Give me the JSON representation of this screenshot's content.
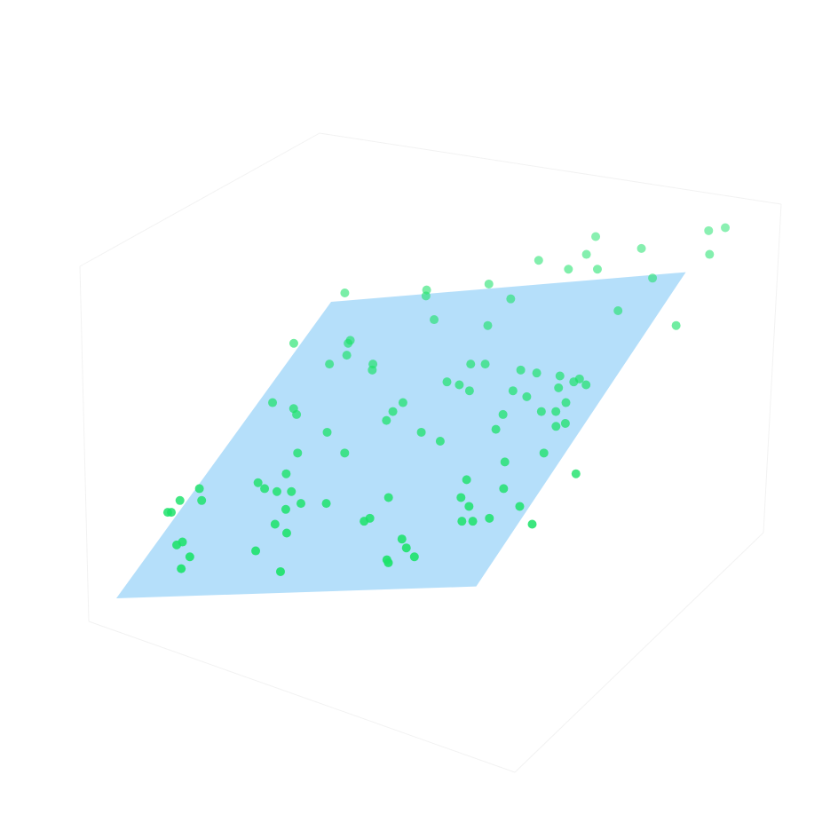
{
  "chart_data": {
    "type": "scatter3d",
    "xlim": [
      0,
      10
    ],
    "ylim": [
      0,
      10
    ],
    "surface": {
      "color": "#b1ddfa",
      "x": [
        0,
        9.7,
        9.2,
        0
      ],
      "y": [
        0,
        0.4,
        11,
        10
      ]
    },
    "series": [
      {
        "color": "#1de26a",
        "x": [
          0.2,
          2.4,
          2.5,
          4.0,
          4.9,
          3.2,
          4.8,
          4.9,
          5.9,
          6.1,
          6.0,
          6.7,
          7.5,
          9.0,
          9.4,
          9.5,
          8.4,
          8.1,
          10.0,
          -0.2,
          1.3,
          1.3,
          1.5,
          1.2,
          2.4,
          2.5,
          5.1,
          5.5,
          6.6,
          7.1,
          7.8,
          8.3,
          8.4,
          8.7,
          8.0,
          4.8,
          5.2,
          5.6,
          6.8,
          7.3,
          8.5,
          8.0,
          8.4,
          7.0,
          8.9,
          8.7,
          7.1,
          8.9,
          10.2,
          8.0,
          8.5,
          7.3,
          7.5,
          7.9,
          9.3,
          8.7,
          8.3,
          8.0,
          10.0,
          0.4,
          1.1,
          1.3,
          3.9,
          4.0,
          3.9,
          5.1,
          5.8,
          2.5,
          2.1,
          3.4,
          2.2,
          1.6,
          1.9,
          2.3,
          2.7,
          3.2,
          3.9,
          2.9,
          2.9,
          3.4,
          5.5,
          5.4,
          5.3,
          6.7,
          7.0,
          7.4,
          6.7,
          6.8,
          2.9,
          4.0,
          0.1,
          -0.2,
          0.4,
          -0.3,
          -0.2,
          0.6,
          0.7,
          1.2,
          1.2
        ],
        "y": [
          10.3,
          10.4,
          10.2,
          10.6,
          10.1,
          9.4,
          9.2,
          11.4,
          11.1,
          11.6,
          12.2,
          11.1,
          11.8,
          12.4,
          12.5,
          11.6,
          10.8,
          9.7,
          9.2,
          8.6,
          8.7,
          8.6,
          8.2,
          7.9,
          7.9,
          7.7,
          7.9,
          7.9,
          7.7,
          7.6,
          7.5,
          7.3,
          7.4,
          7.2,
          7.1,
          7.3,
          7.2,
          7.0,
          7.0,
          6.8,
          6.6,
          6.3,
          6.3,
          6.2,
          5.9,
          5.8,
          5.7,
          4.9,
          4.2,
          4.6,
          3.7,
          4.0,
          3.4,
          3.1,
          3.1,
          2.7,
          2.6,
          2.6,
          2.5,
          6.6,
          6.4,
          6.2,
          6.3,
          6.6,
          6.0,
          5.6,
          5.3,
          5.6,
          4.9,
          4.9,
          4.2,
          3.9,
          3.7,
          3.6,
          3.6,
          3.2,
          3.2,
          3.0,
          2.5,
          2.2,
          3.4,
          2.7,
          2.6,
          2.0,
          1.7,
          1.4,
          1.3,
          1.2,
          1.6,
          0.9,
          3.7,
          3.3,
          3.3,
          2.9,
          2.9,
          1.8,
          1.9,
          1.4,
          1.0
        ]
      }
    ]
  }
}
